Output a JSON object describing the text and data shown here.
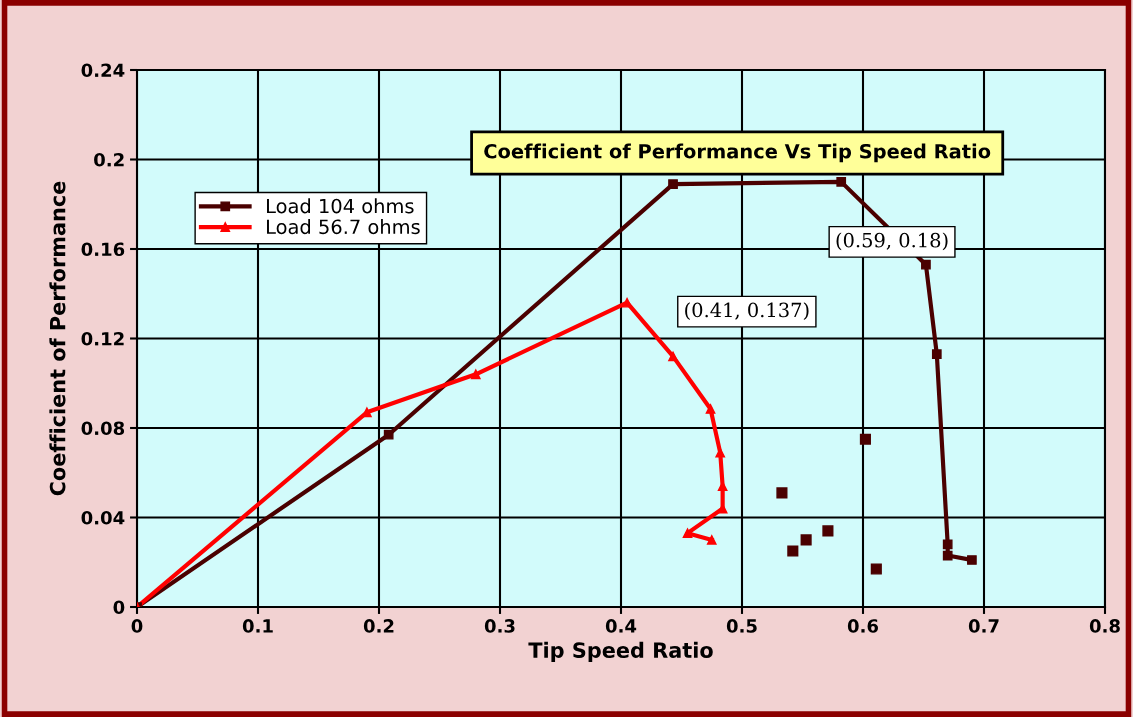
{
  "chart_data": {
    "type": "line",
    "title": "Coefficient of Performance Vs Tip Speed Ratio",
    "xlabel": "Tip Speed Ratio",
    "ylabel": "Coefficient of Performance",
    "xlim": [
      0,
      0.8
    ],
    "xticks": [
      0,
      0.1,
      0.2,
      0.3,
      0.4,
      0.5,
      0.6,
      0.7,
      0.8
    ],
    "ylim": [
      0,
      0.24
    ],
    "yticks": [
      0,
      0.04,
      0.08,
      0.12,
      0.16,
      0.2,
      0.24
    ],
    "grid": true,
    "legend": "top left",
    "line_style": "solid",
    "series": [
      {
        "name": "Load 104 ohms",
        "color": "#4a0000",
        "marker": "square",
        "x": [
          0,
          0.208,
          0.443,
          0.582,
          0.652,
          0.661,
          0.67,
          0.67,
          0.69
        ],
        "values": [
          0,
          0.077,
          0.189,
          0.19,
          0.153,
          0.113,
          0.028,
          0.023,
          0.021
        ]
      },
      {
        "name": "Load 56.7 ohms",
        "color": "#ff0000",
        "marker": "triangle",
        "x": [
          0,
          0.19,
          0.28,
          0.405,
          0.443,
          0.474,
          0.482,
          0.484,
          0.484,
          0.455,
          0.475
        ],
        "values": [
          0,
          0.087,
          0.104,
          0.136,
          0.112,
          0.0885,
          0.069,
          0.054,
          0.044,
          0.033,
          0.03
        ]
      },
      {
        "type": "scatter",
        "color": "#4a0000",
        "marker": "square",
        "x": [
          0.533,
          0.542,
          0.553,
          0.571,
          0.602,
          0.611
        ],
        "values": [
          0.051,
          0.025,
          0.03,
          0.034,
          0.075,
          0.017
        ]
      }
    ],
    "annotations": [
      "(0.59, 0.18)",
      "(0.41, 0.137)"
    ]
  }
}
